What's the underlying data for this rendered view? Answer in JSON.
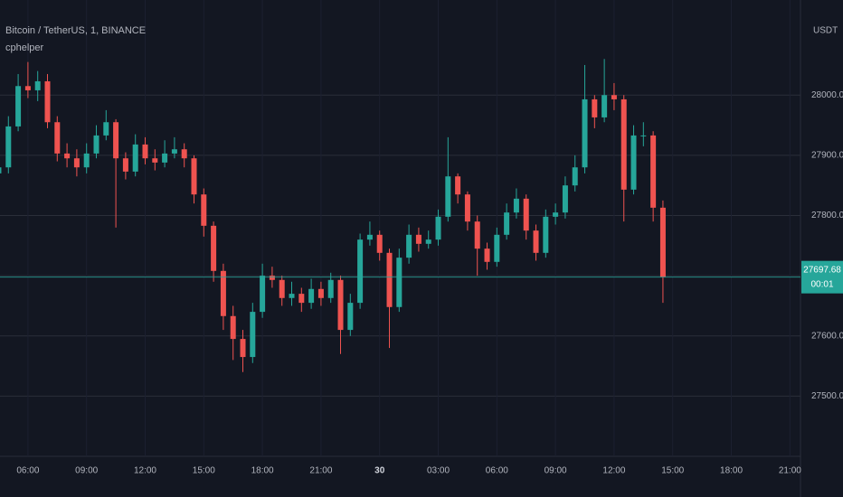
{
  "chart_data": {
    "type": "candlestick",
    "title": "Bitcoin / TetherUS, 1, BINANCE",
    "indicator": "cphelper",
    "y_axis_label": "USDT",
    "x": [
      -1.5,
      -1,
      -0.5,
      0,
      0.5,
      1,
      1.5,
      2,
      2.5,
      3,
      3.5,
      4,
      4.5,
      5,
      5.5,
      6,
      6.5,
      7,
      7.5,
      8,
      8.5,
      9,
      9.5,
      10,
      10.5,
      11,
      11.5,
      12,
      12.5,
      13,
      13.5,
      14,
      14.5,
      15,
      15.5,
      16,
      16.5,
      17,
      17.5,
      18,
      18.5,
      19,
      19.5,
      20,
      20.5,
      21,
      21.5,
      22,
      22.5,
      23,
      23.5,
      24,
      24.5,
      25,
      25.5,
      26,
      26.5,
      27,
      27.5,
      28,
      28.5,
      29,
      29.5,
      30,
      30.5,
      31,
      31.5,
      32,
      32.5
    ],
    "open": [
      27870,
      27880,
      27948,
      28015,
      28008,
      28023,
      27955,
      27903,
      27895,
      27880,
      27903,
      27933,
      27955,
      27895,
      27873,
      27918,
      27895,
      27888,
      27903,
      27910,
      27895,
      27835,
      27783,
      27708,
      27633,
      27595,
      27565,
      27640,
      27700,
      27693,
      27663,
      27670,
      27655,
      27678,
      27663,
      27693,
      27610,
      27655,
      27760,
      27768,
      27738,
      27648,
      27730,
      27768,
      27753,
      27760,
      27798,
      27865,
      27835,
      27790,
      27745,
      27723,
      27768,
      27805,
      27828,
      27775,
      27738,
      27798,
      27805,
      27850,
      27880,
      27993,
      27963,
      28000,
      27993,
      27843,
      27933,
      27933,
      27813
    ],
    "high": [
      27895,
      27965,
      28035,
      28055,
      28040,
      28035,
      27965,
      27920,
      27910,
      27920,
      27950,
      27975,
      27960,
      27905,
      27935,
      27930,
      27910,
      27925,
      27930,
      27920,
      27900,
      27845,
      27790,
      27720,
      27650,
      27610,
      27655,
      27720,
      27715,
      27700,
      27690,
      27680,
      27695,
      27690,
      27705,
      27700,
      27670,
      27770,
      27790,
      27775,
      27745,
      27745,
      27785,
      27780,
      27775,
      27810,
      27930,
      27870,
      27840,
      27800,
      27755,
      27780,
      27820,
      27845,
      27835,
      27785,
      27810,
      27820,
      27865,
      27900,
      28050,
      28000,
      28060,
      28020,
      28000,
      27950,
      27955,
      27940,
      27825
    ],
    "low": [
      27855,
      27870,
      27940,
      27995,
      27990,
      27945,
      27890,
      27880,
      27865,
      27870,
      27895,
      27925,
      27780,
      27860,
      27865,
      27885,
      27875,
      27880,
      27895,
      27880,
      27820,
      27765,
      27690,
      27610,
      27560,
      27540,
      27555,
      27630,
      27680,
      27650,
      27650,
      27640,
      27645,
      27650,
      27655,
      27570,
      27600,
      27645,
      27750,
      27725,
      27580,
      27640,
      27720,
      27740,
      27745,
      27750,
      27790,
      27820,
      27775,
      27700,
      27710,
      27715,
      27760,
      27795,
      27760,
      27725,
      27730,
      27785,
      27795,
      27840,
      27870,
      27945,
      27955,
      27975,
      27790,
      27835,
      27915,
      27790,
      27655
    ],
    "close": [
      27880,
      27948,
      28015,
      28008,
      28023,
      27955,
      27903,
      27895,
      27880,
      27903,
      27933,
      27955,
      27895,
      27873,
      27918,
      27895,
      27888,
      27903,
      27910,
      27895,
      27835,
      27783,
      27708,
      27633,
      27595,
      27565,
      27640,
      27700,
      27693,
      27663,
      27670,
      27655,
      27678,
      27663,
      27693,
      27610,
      27655,
      27760,
      27768,
      27738,
      27648,
      27730,
      27768,
      27753,
      27760,
      27798,
      27865,
      27835,
      27790,
      27745,
      27723,
      27768,
      27805,
      27828,
      27775,
      27738,
      27798,
      27805,
      27850,
      27880,
      27993,
      27963,
      28000,
      27993,
      27843,
      27933,
      27933,
      27813,
      27697.68
    ],
    "up_color": "#26a69a",
    "down_color": "#ef5350",
    "last_price": 27697.68,
    "countdown": "00:01",
    "xlim": [
      -1.43,
      39.54
    ],
    "xticks": [
      {
        "value": 0,
        "label": "06:00"
      },
      {
        "value": 3,
        "label": "09:00"
      },
      {
        "value": 6,
        "label": "12:00"
      },
      {
        "value": 9,
        "label": "15:00"
      },
      {
        "value": 12,
        "label": "18:00"
      },
      {
        "value": 15,
        "label": "21:00"
      },
      {
        "value": 18,
        "label": "30"
      },
      {
        "value": 21,
        "label": "03:00"
      },
      {
        "value": 24,
        "label": "06:00"
      },
      {
        "value": 27,
        "label": "09:00"
      },
      {
        "value": 30,
        "label": "12:00"
      },
      {
        "value": 33,
        "label": "15:00"
      },
      {
        "value": 36,
        "label": "18:00"
      },
      {
        "value": 39,
        "label": "21:00"
      }
    ],
    "ylim": [
      27400,
      28158
    ],
    "yticks": [
      {
        "value": 27500,
        "label": "27500.00"
      },
      {
        "value": 27600,
        "label": "27600.00"
      },
      {
        "value": 27700,
        "label": "27700.00"
      },
      {
        "value": 27800,
        "label": "27800.00"
      },
      {
        "value": 27900,
        "label": "27900.00"
      },
      {
        "value": 28000,
        "label": "28000.00"
      }
    ],
    "grid": true
  }
}
